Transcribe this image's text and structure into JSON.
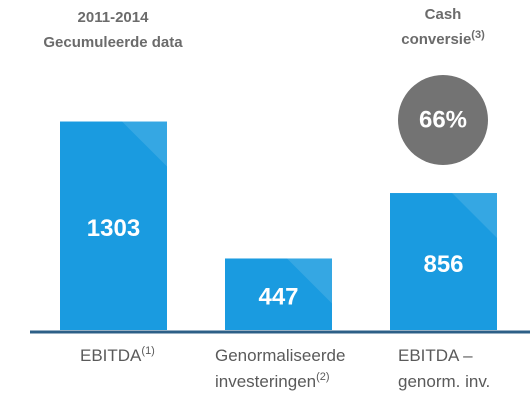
{
  "chart_data": {
    "type": "bar",
    "title": [
      "2011-2014",
      "Gecumuleerde data"
    ],
    "categories": [
      [
        "EBITDA"
      ],
      [
        "Genormaliseerde",
        "investeringen"
      ],
      [
        "EBITDA –",
        "genorm. inv."
      ]
    ],
    "category_notes": [
      "(1)",
      "(2)",
      null
    ],
    "values": [
      1303,
      447,
      856
    ],
    "color": "#1a9be0",
    "annotation": {
      "label": [
        "Cash",
        "conversie"
      ],
      "note": "(3)",
      "value": 66,
      "value_label": "66%",
      "color": "#737373"
    }
  }
}
